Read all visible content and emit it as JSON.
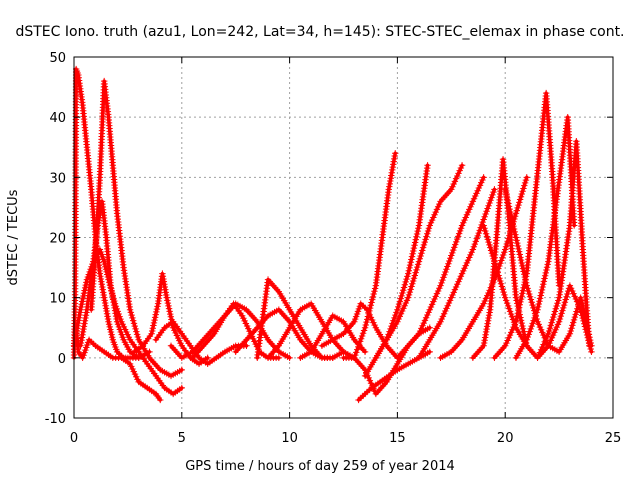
{
  "chart_data": {
    "type": "scatter",
    "title": "dSTEC Iono. truth (azu1, Lon=242, Lat=34, h=145): STEC-STEC_elemax in phase cont.",
    "xlabel": "GPS time / hours of day 259 of year 2014",
    "ylabel": "dSTEC  / TECUs",
    "xlim": [
      0,
      25
    ],
    "ylim": [
      -10,
      50
    ],
    "xticks": [
      0,
      5,
      10,
      15,
      20,
      25
    ],
    "yticks": [
      -10,
      0,
      10,
      20,
      30,
      40,
      50
    ],
    "xtick_labels": [
      "0",
      "5",
      "10",
      "15",
      "20",
      "25"
    ],
    "ytick_labels": [
      "-10",
      "0",
      "10",
      "20",
      "30",
      "40",
      "50"
    ],
    "grid": true,
    "marker": "+",
    "color": "#ff0000",
    "series": [
      {
        "x": [
          0.0,
          0.1,
          0.2,
          0.4,
          0.7,
          1.0,
          1.4,
          1.8,
          2.2,
          2.6,
          3.0,
          3.4,
          3.8,
          4.0
        ],
        "y": [
          2,
          5,
          1,
          0,
          3,
          2,
          1,
          0,
          0,
          -1,
          -4,
          -5,
          -6,
          -7
        ]
      },
      {
        "x": [
          0.0,
          0.05,
          0.1,
          0.2,
          0.4,
          0.6,
          0.8,
          1.0,
          1.2,
          1.4,
          1.6,
          1.8,
          2.0,
          2.3,
          2.6,
          3.0
        ],
        "y": [
          0,
          10,
          48,
          47,
          42,
          35,
          28,
          20,
          14,
          10,
          6,
          3,
          1,
          0,
          0,
          0
        ]
      },
      {
        "x": [
          0.1,
          0.3,
          0.6,
          0.9,
          1.2,
          1.4,
          1.6,
          1.9,
          2.2,
          2.6,
          3.0,
          3.4,
          3.8,
          4.2,
          4.6,
          5.0
        ],
        "y": [
          4,
          8,
          13,
          16,
          18,
          16,
          13,
          9,
          6,
          3,
          1,
          -1,
          -3,
          -5,
          -6,
          -5
        ]
      },
      {
        "x": [
          0.3,
          0.6,
          0.9,
          1.1,
          1.3,
          1.5,
          1.7,
          2.0,
          2.3,
          2.6,
          3.0,
          3.5
        ],
        "y": [
          2,
          8,
          16,
          22,
          26,
          20,
          12,
          6,
          3,
          1,
          0,
          1
        ]
      },
      {
        "x": [
          0.8,
          1.0,
          1.2,
          1.4,
          1.6,
          1.8,
          2.0,
          2.3,
          2.6,
          3.0,
          3.5,
          4.0,
          4.5,
          5.0
        ],
        "y": [
          8,
          18,
          30,
          46,
          40,
          32,
          24,
          15,
          8,
          3,
          0,
          -2,
          -3,
          -2
        ]
      },
      {
        "x": [
          2.8,
          3.2,
          3.6,
          3.9,
          4.1,
          4.3,
          4.6,
          5.0,
          5.4,
          5.8,
          6.2
        ],
        "y": [
          1,
          2,
          4,
          9,
          14,
          10,
          5,
          2,
          0,
          -1,
          0
        ]
      },
      {
        "x": [
          3.8,
          4.2,
          4.6,
          5.0,
          5.4,
          5.8,
          6.2,
          6.6,
          7.0,
          7.5,
          8.0
        ],
        "y": [
          3,
          5,
          6,
          4,
          2,
          0,
          -1,
          0,
          1,
          2,
          2
        ]
      },
      {
        "x": [
          4.5,
          5.0,
          5.5,
          6.0,
          6.5,
          7.0,
          7.4,
          7.8,
          8.2,
          8.6,
          9.0,
          9.5
        ],
        "y": [
          2,
          0,
          1,
          3,
          5,
          7,
          9,
          7,
          4,
          1,
          0,
          0
        ]
      },
      {
        "x": [
          5.5,
          6.0,
          6.5,
          7.0,
          7.5,
          8.0,
          8.5,
          9.0,
          9.5,
          10.0
        ],
        "y": [
          0,
          2,
          4,
          7,
          9,
          8,
          6,
          3,
          1,
          0
        ]
      },
      {
        "x": [
          7.5,
          8.0,
          8.5,
          9.0,
          9.5,
          10.0,
          10.5,
          11.0,
          11.5,
          12.0
        ],
        "y": [
          1,
          3,
          5,
          7,
          8,
          6,
          3,
          1,
          0,
          0
        ]
      },
      {
        "x": [
          8.5,
          9.0,
          9.5,
          10.0,
          10.5,
          11.0,
          11.5,
          12.0,
          12.5
        ],
        "y": [
          0,
          13,
          11,
          8,
          5,
          2,
          0,
          0,
          1
        ]
      },
      {
        "x": [
          9.0,
          9.5,
          10.0,
          10.5,
          11.0,
          11.5,
          12.0,
          12.5,
          13.0
        ],
        "y": [
          0,
          2,
          5,
          8,
          9,
          6,
          3,
          1,
          0
        ]
      },
      {
        "x": [
          10.5,
          11.0,
          11.5,
          12.0,
          12.5,
          13.0,
          13.5
        ],
        "y": [
          0,
          1,
          4,
          7,
          6,
          3,
          1
        ]
      },
      {
        "x": [
          11.5,
          12.0,
          12.5,
          13.0,
          13.3,
          13.6,
          14.0,
          14.5,
          15.0
        ],
        "y": [
          2,
          3,
          4,
          6,
          9,
          8,
          5,
          2,
          0
        ]
      },
      {
        "x": [
          12.5,
          13.0,
          13.5,
          14.0,
          14.5,
          15.0,
          15.5,
          16.0,
          16.5
        ],
        "y": [
          0,
          0,
          -2,
          -6,
          -4,
          -1,
          2,
          4,
          5
        ]
      },
      {
        "x": [
          13.2,
          13.5,
          13.8,
          14.2,
          14.6,
          15.0,
          15.5,
          16.0,
          16.5
        ],
        "y": [
          -7,
          -6,
          -5,
          -4,
          -3,
          -2,
          -1,
          0,
          1
        ]
      },
      {
        "x": [
          13.0,
          13.5,
          14.0,
          14.3,
          14.6,
          14.9
        ],
        "y": [
          0,
          5,
          12,
          20,
          28,
          34
        ]
      },
      {
        "x": [
          13.5,
          14.0,
          14.5,
          15.0,
          15.5,
          16.0,
          16.4
        ],
        "y": [
          -3,
          0,
          3,
          8,
          14,
          22,
          32
        ]
      },
      {
        "x": [
          14.0,
          14.5,
          15.0,
          15.5,
          16.0,
          16.5,
          17.0,
          17.5,
          18.0
        ],
        "y": [
          0,
          3,
          6,
          10,
          16,
          22,
          26,
          28,
          32
        ]
      },
      {
        "x": [
          15.0,
          15.5,
          16.0,
          16.5,
          17.0,
          17.5,
          18.0,
          18.5,
          19.0
        ],
        "y": [
          0,
          2,
          4,
          8,
          12,
          17,
          22,
          26,
          30
        ]
      },
      {
        "x": [
          16.0,
          16.5,
          17.0,
          17.5,
          18.0,
          18.5,
          19.0,
          19.5
        ],
        "y": [
          0,
          3,
          6,
          10,
          14,
          18,
          23,
          28
        ]
      },
      {
        "x": [
          17.0,
          17.5,
          18.0,
          18.5,
          19.0,
          19.5,
          20.0,
          20.5,
          21.0
        ],
        "y": [
          0,
          1,
          3,
          6,
          9,
          13,
          18,
          24,
          30
        ]
      },
      {
        "x": [
          18.5,
          19.0,
          19.3,
          19.6,
          19.9,
          20.2,
          20.5,
          21.0
        ],
        "y": [
          0,
          2,
          8,
          20,
          33,
          22,
          10,
          2
        ]
      },
      {
        "x": [
          19.5,
          20.0,
          20.5,
          21.0,
          21.3,
          21.6,
          21.9,
          22.2,
          22.5
        ],
        "y": [
          0,
          2,
          6,
          14,
          24,
          34,
          44,
          30,
          12
        ]
      },
      {
        "x": [
          20.5,
          21.0,
          21.5,
          22.0,
          22.3,
          22.6,
          22.9,
          23.2
        ],
        "y": [
          0,
          3,
          8,
          16,
          24,
          32,
          40,
          22
        ]
      },
      {
        "x": [
          21.5,
          22.0,
          22.5,
          23.0,
          23.3,
          23.6,
          23.9
        ],
        "y": [
          0,
          4,
          10,
          22,
          36,
          18,
          2
        ]
      },
      {
        "x": [
          19.0,
          19.5,
          20.0,
          20.5,
          21.0,
          21.5,
          22.0,
          22.5,
          23.0,
          23.5,
          24.0
        ],
        "y": [
          22,
          16,
          10,
          5,
          2,
          0,
          2,
          6,
          12,
          8,
          1
        ]
      },
      {
        "x": [
          20.0,
          20.5,
          21.0,
          21.5,
          22.0,
          22.5,
          23.0,
          23.5,
          24.0
        ],
        "y": [
          28,
          20,
          12,
          6,
          2,
          1,
          4,
          10,
          2
        ]
      }
    ]
  }
}
